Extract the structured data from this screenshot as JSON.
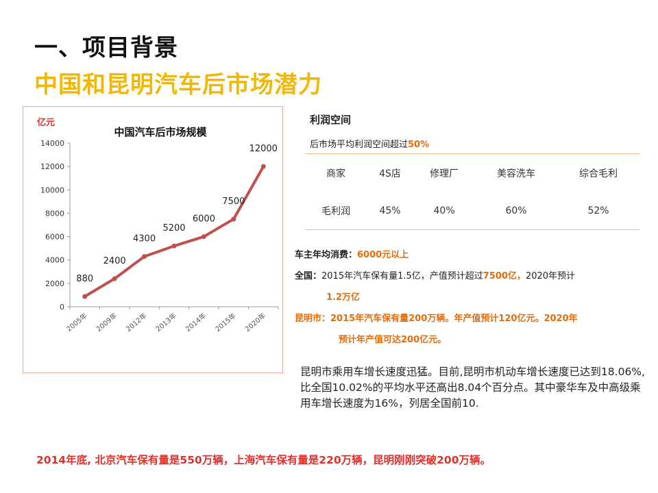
{
  "header": {
    "title": "一、项目背景",
    "subtitle": "中国和昆明汽车后市场潜力"
  },
  "chart_data": {
    "type": "line",
    "title": "中国汽车后市场规模",
    "ylabel": "亿元",
    "categories": [
      "2005年",
      "2009年",
      "2012年",
      "2013年",
      "2014年",
      "2015年",
      "2020年"
    ],
    "values": [
      880,
      2400,
      4300,
      5200,
      6000,
      7500,
      12000
    ],
    "data_labels": [
      "880",
      "2400",
      "4300",
      "5200",
      "6000",
      "7500",
      "12000"
    ],
    "yticks": [
      "0",
      "2000",
      "4000",
      "6000",
      "8000",
      "10000",
      "12000",
      "14000"
    ],
    "ylim": [
      0,
      14000
    ],
    "line_color": "#c0504d",
    "grid": false
  },
  "profit": {
    "title": "利润空间",
    "summary_prefix": "后市场平均利润空间超过",
    "summary_value": "50%",
    "table": {
      "header": [
        "商家",
        "4S店",
        "修理厂",
        "美容洗车",
        "综合毛利"
      ],
      "row": [
        "毛利润",
        "45%",
        "40%",
        "60%",
        "52%"
      ]
    }
  },
  "stats": {
    "consumption_label": "车主年均消费：",
    "consumption_value": "6000元以上",
    "national_label": "全国：",
    "national_text1": "2015年汽车保有量1.5亿，产值预计超过",
    "national_value1": "7500亿，",
    "national_text2": "2020年预计",
    "national_value2": "1.2万亿",
    "kunming_line1": "昆明市：2015年汽车保有量200万辆。年产值预计120亿元。2020年",
    "kunming_line2": "预计年产值可达200亿元。"
  },
  "paragraph": "昆明市乘用车增长速度迅猛。目前,昆明市机动车增长速度已达到18.06%,比全国10.02%的平均水平还高出8.04个百分点。其中豪华车及中高级乘用车增长速度为16%，列居全国前10.",
  "bottom_note": "2014年底, 北京汽车保有量是550万辆，上海汽车保有量是220万辆，昆明刚刚突破200万辆。",
  "colors": {
    "accent_orange": "#e46c0a",
    "accent_yellow": "#f2b705",
    "accent_red": "#e0302b"
  }
}
